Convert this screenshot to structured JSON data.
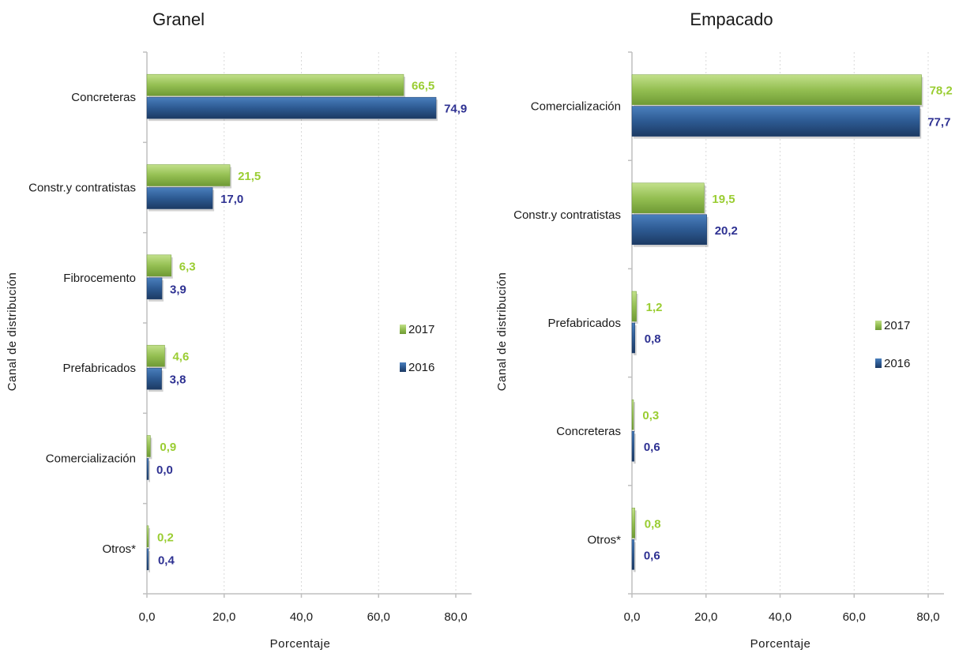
{
  "colors": {
    "s2017_light": "#a9cf6a",
    "s2017_dark": "#6f9a35",
    "s2017_label": "#9acd32",
    "s2016_light": "#3d6fa8",
    "s2016_dark": "#1f3f6b",
    "s2016_label": "#2e3192",
    "axis": "#bfbfbf",
    "grid": "#d9d9d9"
  },
  "chart_data": [
    {
      "type": "bar",
      "orientation": "horizontal",
      "title": "Granel",
      "xlabel": "Porcentaje",
      "ylabel": "Canal de distribución",
      "xlim": [
        0,
        80
      ],
      "xticks": [
        "0,0",
        "20,0",
        "40,0",
        "60,0",
        "80,0"
      ],
      "categories": [
        "Concreteras",
        "Constr.y contratistas",
        "Fibrocemento",
        "Prefabricados",
        "Comercialización",
        "Otros*"
      ],
      "series": [
        {
          "name": "2017",
          "values": [
            66.5,
            21.5,
            6.3,
            4.6,
            0.9,
            0.2
          ],
          "labels": [
            "66,5",
            "21,5",
            "6,3",
            "4,6",
            "0,9",
            "0,2"
          ]
        },
        {
          "name": "2016",
          "values": [
            74.9,
            17.0,
            3.9,
            3.8,
            0.0,
            0.4
          ],
          "labels": [
            "74,9",
            "17,0",
            "3,9",
            "3,8",
            "0,0",
            "0,4"
          ]
        }
      ],
      "legend": "right"
    },
    {
      "type": "bar",
      "orientation": "horizontal",
      "title": "Empacado",
      "xlabel": "Porcentaje",
      "ylabel": "Canal de distribución",
      "xlim": [
        0,
        80
      ],
      "xticks": [
        "0,0",
        "20,0",
        "40,0",
        "60,0",
        "80,0"
      ],
      "categories": [
        "Comercialización",
        "Constr.y contratistas",
        "Prefabricados",
        "Concreteras",
        "Otros*"
      ],
      "series": [
        {
          "name": "2017",
          "values": [
            78.2,
            19.5,
            1.2,
            0.3,
            0.8
          ],
          "labels": [
            "78,2",
            "19,5",
            "1,2",
            "0,3",
            "0,8"
          ]
        },
        {
          "name": "2016",
          "values": [
            77.7,
            20.2,
            0.8,
            0.6,
            0.6
          ],
          "labels": [
            "77,7",
            "20,2",
            "0,8",
            "0,6",
            "0,6"
          ]
        }
      ],
      "legend": "right"
    }
  ]
}
